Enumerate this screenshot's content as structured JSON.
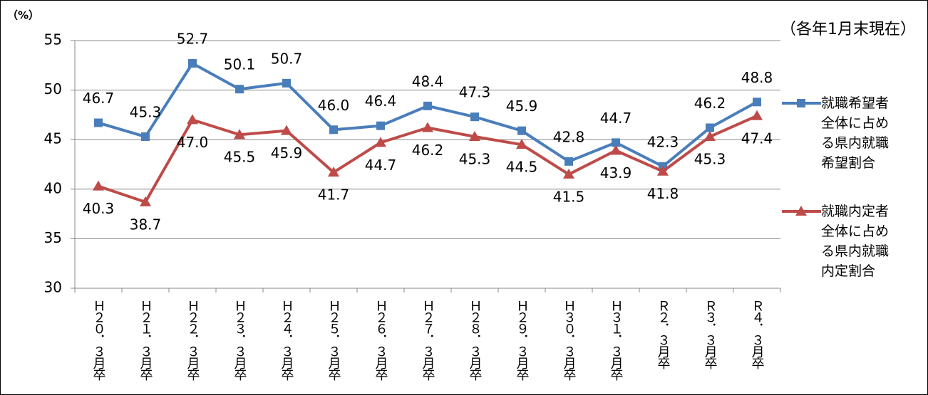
{
  "chart_data": {
    "type": "line",
    "y_label": "（%）",
    "annotation": "（各年1月末現在）",
    "categories": [
      "Ｈ２０．３月卒",
      "Ｈ２１．３月卒",
      "Ｈ２２．３月卒",
      "Ｈ２３．３月卒",
      "Ｈ２４．３月卒",
      "Ｈ２５．３月卒",
      "Ｈ２６．３月卒",
      "Ｈ２７．３月卒",
      "Ｈ２８．３月卒",
      "Ｈ２９．３月卒",
      "Ｈ３０．３月卒",
      "Ｈ３１．３月卒",
      "Ｒ２．３月卒",
      "Ｒ３．３月卒",
      "Ｒ４．３月卒"
    ],
    "series": [
      {
        "name": "就職希望者全体に占める県内就職希望割合",
        "color": "#4a7ebb",
        "marker": "square",
        "values": [
          46.7,
          45.3,
          52.7,
          50.1,
          50.7,
          46.0,
          46.4,
          48.4,
          47.3,
          45.9,
          42.8,
          44.7,
          42.3,
          46.2,
          48.8
        ],
        "value_labels": [
          "46.7",
          "45.3",
          "52.7",
          "50.1",
          "50.7",
          "46.0",
          "46.4",
          "48.4",
          "47.3",
          "45.9",
          "42.8",
          "44.7",
          "42.3",
          "46.2",
          "48.8"
        ]
      },
      {
        "name": "就職内定者全体に占める県内就職内定割合",
        "color": "#be4b48",
        "marker": "triangle",
        "values": [
          40.3,
          38.7,
          47.0,
          45.5,
          45.9,
          41.7,
          44.7,
          46.2,
          45.3,
          44.5,
          41.5,
          43.9,
          41.8,
          45.3,
          47.4
        ],
        "value_labels": [
          "40.3",
          "38.7",
          "47.0",
          "45.5",
          "45.9",
          "41.7",
          "44.7",
          "46.2",
          "45.3",
          "44.5",
          "41.5",
          "43.9",
          "41.8",
          "45.3",
          "47.4"
        ]
      }
    ],
    "ylim": [
      30,
      55
    ],
    "yticks": [
      30,
      35,
      40,
      45,
      50,
      55
    ],
    "grid": true
  }
}
